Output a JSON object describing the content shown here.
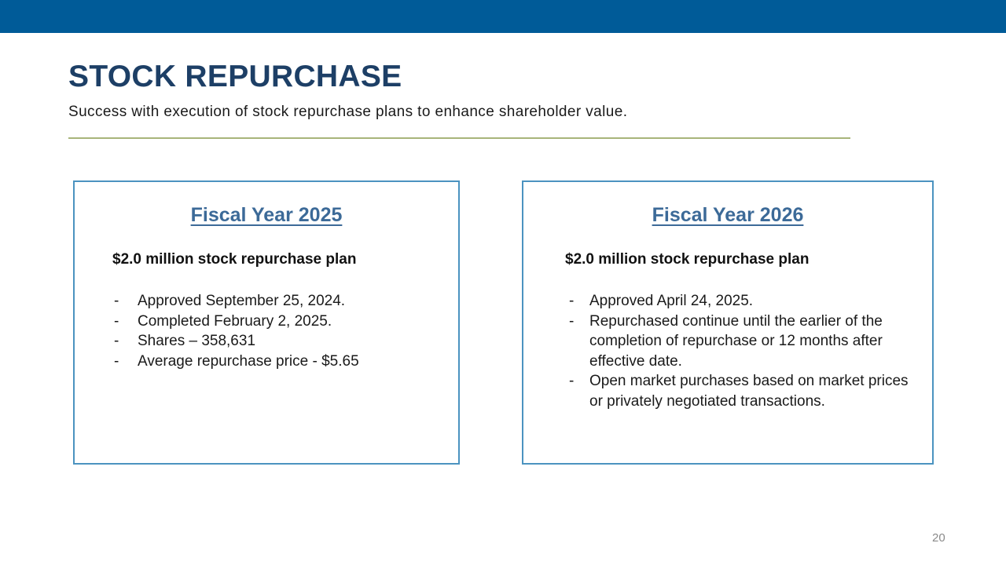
{
  "slide": {
    "title": "STOCK REPURCHASE",
    "subtitle": "Success with execution of stock repurchase plans to enhance shareholder value.",
    "page_number": "20",
    "colors": {
      "top_bar": "#005b98",
      "title": "#1d3f66",
      "card_border": "#4b93c0",
      "divider": "#a8b57a",
      "card_heading": "#3c6a98"
    }
  },
  "fy2025": {
    "heading": "Fiscal Year 2025",
    "plan": "$2.0 million stock repurchase plan",
    "bullets": [
      "Approved September 25, 2024.",
      "Completed February 2, 2025.",
      "Shares – 358,631",
      "Average repurchase price - $5.65"
    ]
  },
  "fy2026": {
    "heading": "Fiscal Year 2026",
    "plan": "$2.0 million stock repurchase plan",
    "bullets": [
      "Approved April 24, 2025.",
      "Repurchased continue until the earlier of the completion of repurchase or 12 months after effective date.",
      "Open market purchases based on market prices or privately negotiated transactions."
    ]
  },
  "bullet_marker": "-"
}
